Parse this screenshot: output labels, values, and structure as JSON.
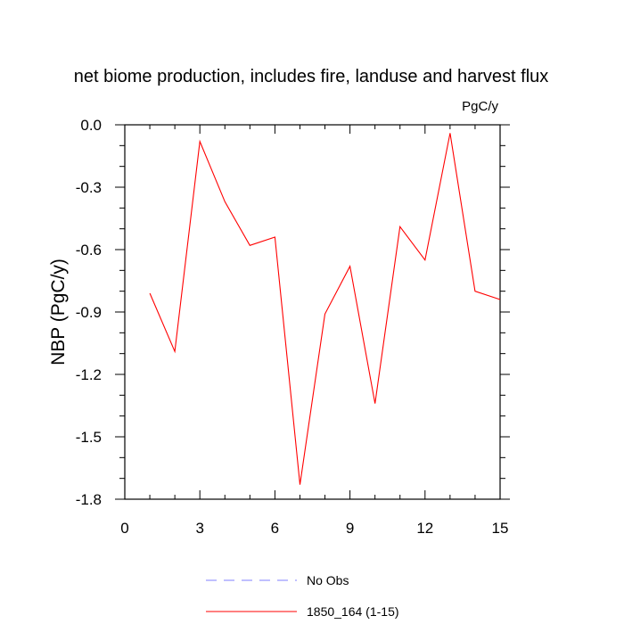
{
  "chart_data": {
    "type": "line",
    "title": "net biome production, includes fire, landuse and harvest flux",
    "units_label": "PgC/y",
    "xlabel": "",
    "ylabel": "NBP  (PgC/y)",
    "xlim": [
      0,
      15
    ],
    "ylim": [
      -1.8,
      0.0
    ],
    "x_ticks": [
      0,
      3,
      6,
      9,
      12,
      15
    ],
    "x_tick_labels": [
      "0",
      "3",
      "6",
      "9",
      "12",
      "15"
    ],
    "y_ticks": [
      0.0,
      -0.3,
      -0.6,
      -0.9,
      -1.2,
      -1.5,
      -1.8
    ],
    "y_tick_labels": [
      "0.0",
      "-0.3",
      "-0.6",
      "-0.9",
      "-1.2",
      "-1.5",
      "-1.8"
    ],
    "grid": false,
    "series": [
      {
        "name": "1850_164 (1-15)",
        "color": "#ff0000",
        "style": "solid",
        "x": [
          1,
          2,
          3,
          4,
          5,
          6,
          7,
          8,
          9,
          10,
          11,
          12,
          13,
          14,
          15
        ],
        "y": [
          -0.81,
          -1.09,
          -0.08,
          -0.37,
          -0.58,
          -0.54,
          -1.73,
          -0.91,
          -0.68,
          -1.34,
          -0.49,
          -0.65,
          -0.04,
          -0.8,
          -0.84
        ]
      }
    ],
    "legend": {
      "placement": "bottom",
      "entries": [
        {
          "label": "No Obs",
          "color": "#8080ff",
          "style": "dashed"
        },
        {
          "label": "1850_164 (1-15)",
          "color": "#ff0000",
          "style": "solid"
        }
      ]
    }
  }
}
